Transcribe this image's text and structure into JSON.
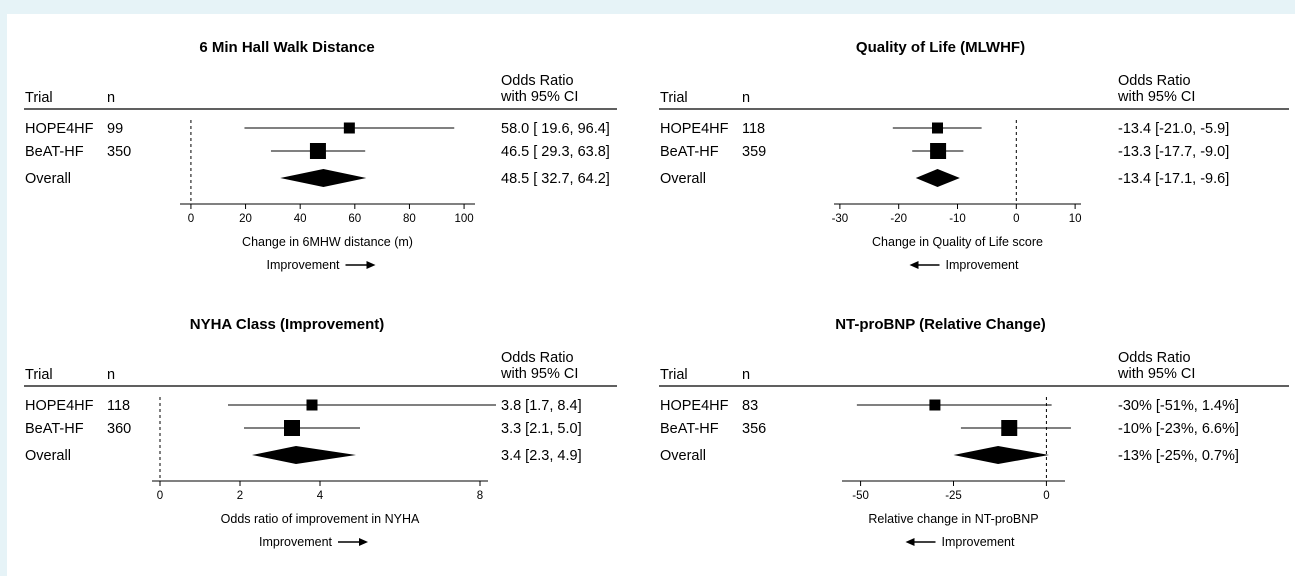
{
  "headers": {
    "trial": "Trial",
    "n": "n",
    "or_line1": "Odds Ratio",
    "or_line2": "with 95% CI"
  },
  "chart_data": [
    {
      "type": "forest",
      "title": "6 Min Hall Walk Distance",
      "xlabel": "Change in 6MHW distance (m)",
      "direction_label": "Improvement",
      "direction": "right",
      "ticks": [
        0,
        20,
        40,
        60,
        80,
        100
      ],
      "xlim": [
        -4,
        104
      ],
      "null_value": 0,
      "rows": [
        {
          "trial": "HOPE4HF",
          "n": "99",
          "estimate": 58.0,
          "lower": 19.6,
          "upper": 96.4,
          "label": "58.0 [ 19.6, 96.4]",
          "box_size": 11
        },
        {
          "trial": "BeAT-HF",
          "n": "350",
          "estimate": 46.5,
          "lower": 29.3,
          "upper": 63.8,
          "label": "46.5 [ 29.3, 63.8]",
          "box_size": 16
        }
      ],
      "overall": {
        "trial": "Overall",
        "estimate": 48.5,
        "lower": 32.7,
        "upper": 64.2,
        "label": "48.5 [ 32.7, 64.2]"
      }
    },
    {
      "type": "forest",
      "title": "Quality of Life (MLWHF)",
      "xlabel": "Change in Quality of Life score",
      "direction_label": "Improvement",
      "direction": "left",
      "ticks": [
        -30,
        -20,
        -10,
        0,
        10
      ],
      "xlim": [
        -31,
        11
      ],
      "null_value": 0,
      "rows": [
        {
          "trial": "HOPE4HF",
          "n": "118",
          "estimate": -13.4,
          "lower": -21.0,
          "upper": -5.9,
          "label": "-13.4 [-21.0, -5.9]",
          "box_size": 11
        },
        {
          "trial": "BeAT-HF",
          "n": "359",
          "estimate": -13.3,
          "lower": -17.7,
          "upper": -9.0,
          "label": "-13.3 [-17.7, -9.0]",
          "box_size": 16
        }
      ],
      "overall": {
        "trial": "Overall",
        "estimate": -13.4,
        "lower": -17.1,
        "upper": -9.6,
        "label": "-13.4 [-17.1, -9.6]"
      }
    },
    {
      "type": "forest",
      "title": "NYHA Class (Improvement)",
      "xlabel": "Odds ratio of improvement in NYHA",
      "direction_label": "Improvement",
      "direction": "right",
      "ticks": [
        0,
        2,
        4,
        8
      ],
      "xlim": [
        -0.2,
        8.2
      ],
      "null_value": 0,
      "rows": [
        {
          "trial": "HOPE4HF",
          "n": "118",
          "estimate": 3.8,
          "lower": 1.7,
          "upper": 8.4,
          "label": "3.8 [1.7, 8.4]",
          "box_size": 11
        },
        {
          "trial": "BeAT-HF",
          "n": "360",
          "estimate": 3.3,
          "lower": 2.1,
          "upper": 5.0,
          "label": "3.3 [2.1, 5.0]",
          "box_size": 16
        }
      ],
      "overall": {
        "trial": "Overall",
        "estimate": 3.4,
        "lower": 2.3,
        "upper": 4.9,
        "label": "3.4 [2.3, 4.9]"
      }
    },
    {
      "type": "forest",
      "title": "NT-proBNP (Relative Change)",
      "xlabel": "Relative change in NT-proBNP",
      "direction_label": "Improvement",
      "direction": "left",
      "ticks": [
        -50,
        -25,
        0
      ],
      "xlim": [
        -55,
        5
      ],
      "null_value": 0,
      "rows": [
        {
          "trial": "HOPE4HF",
          "n": "83",
          "estimate": -30,
          "lower": -51,
          "upper": 1.4,
          "label": "-30% [-51%, 1.4%]",
          "box_size": 11
        },
        {
          "trial": "BeAT-HF",
          "n": "356",
          "estimate": -10,
          "lower": -23,
          "upper": 6.6,
          "label": "-10% [-23%, 6.6%]",
          "box_size": 16
        }
      ],
      "overall": {
        "trial": "Overall",
        "estimate": -13,
        "lower": -25,
        "upper": 0.7,
        "label": "-13% [-25%, 0.7%]"
      }
    }
  ]
}
